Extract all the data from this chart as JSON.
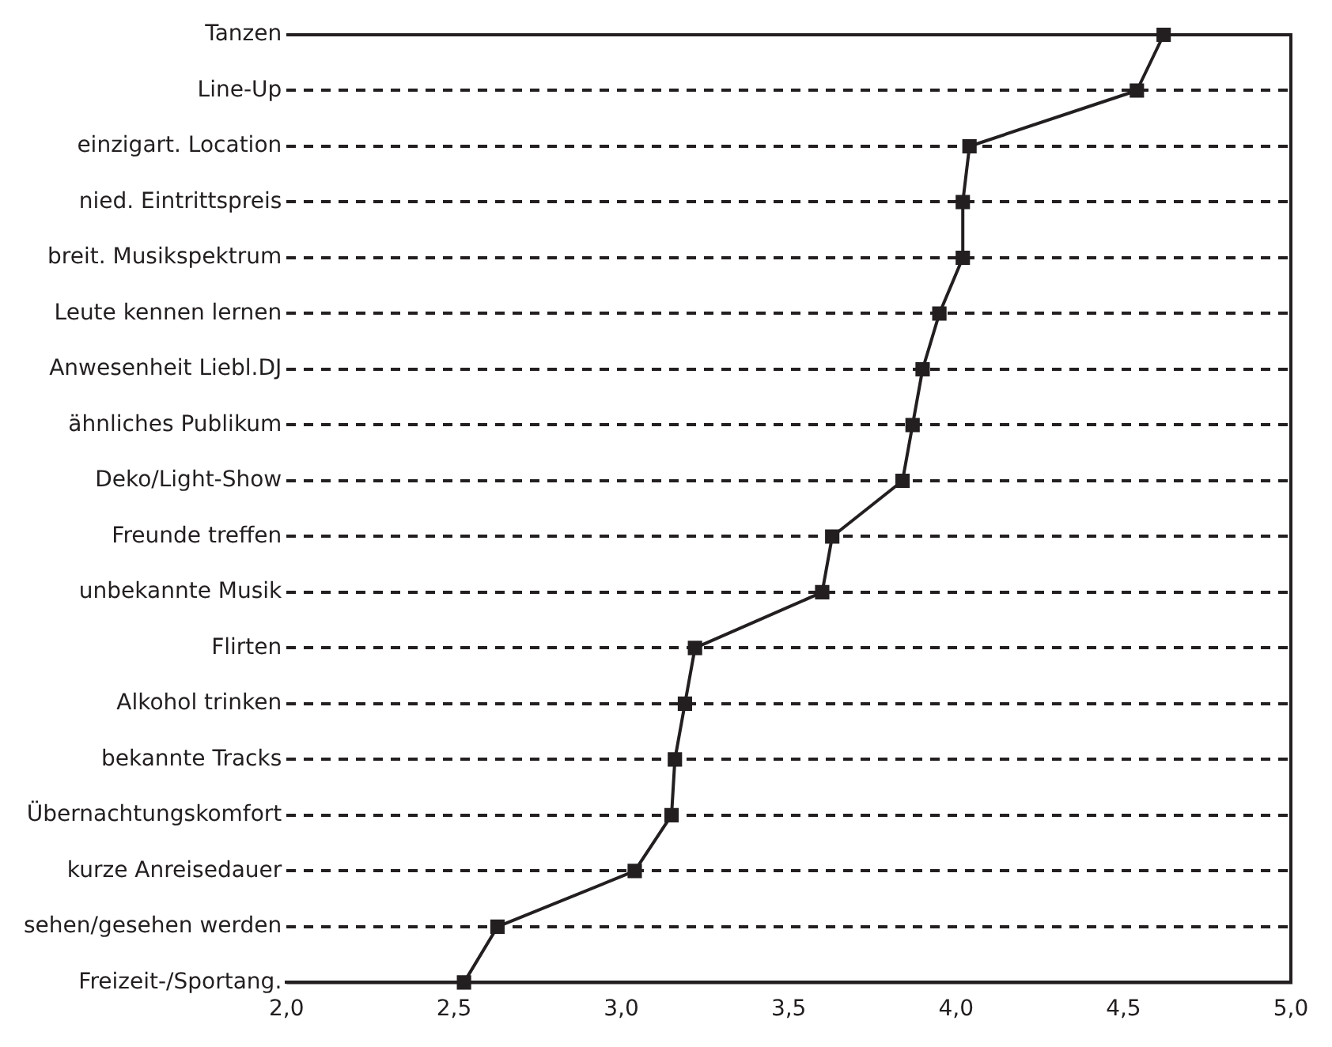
{
  "chart_data": {
    "type": "line",
    "orientation": "horizontal",
    "categories": [
      "Tanzen",
      "Line-Up",
      "einzigart. Location",
      "nied. Eintrittspreis",
      "breit. Musikspektrum",
      "Leute kennen lernen",
      "Anwesenheit Liebl.DJ",
      "ähnliches Publikum",
      "Deko/Light-Show",
      "Freunde treffen",
      "unbekannte Musik",
      "Flirten",
      "Alkohol trinken",
      "bekannte Tracks",
      "Übernachtungskomfort",
      "kurze Anreisedauer",
      "sehen/gesehen werden",
      "Freizeit-/Sportang."
    ],
    "series": [
      {
        "color": "#231f20",
        "values": [
          4.62,
          4.54,
          4.04,
          4.02,
          4.02,
          3.95,
          3.9,
          3.87,
          3.84,
          3.63,
          3.6,
          3.22,
          3.19,
          3.16,
          3.15,
          3.04,
          2.63,
          2.53
        ]
      }
    ],
    "xlim": [
      2,
      5
    ],
    "xticks": [
      {
        "value": 2,
        "label": "2,0"
      },
      {
        "value": 2.5,
        "label": "2,5"
      },
      {
        "value": 3,
        "label": "3,0"
      },
      {
        "value": 3.5,
        "label": "3,5"
      },
      {
        "value": 4,
        "label": "4,0"
      },
      {
        "value": 4.5,
        "label": "4,5"
      },
      {
        "value": 5,
        "label": "5,0"
      }
    ],
    "grid": "y",
    "marker": "square",
    "line_style": "solid",
    "legend": false
  }
}
